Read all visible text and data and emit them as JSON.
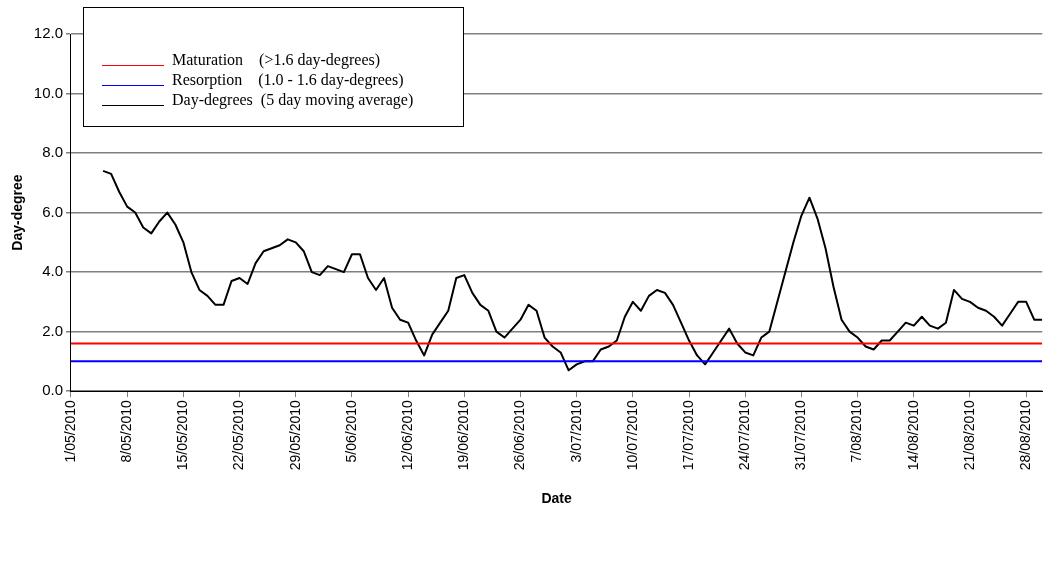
{
  "chart_data": {
    "type": "line",
    "xlabel": "Date",
    "ylabel": "Day-degree",
    "xlim": [
      "2010-05-01",
      "2010-08-30"
    ],
    "xticks": [
      {
        "value": "2010-05-01",
        "label": "1/05/2010"
      },
      {
        "value": "2010-05-08",
        "label": "8/05/2010"
      },
      {
        "value": "2010-05-15",
        "label": "15/05/2010"
      },
      {
        "value": "2010-05-22",
        "label": "22/05/2010"
      },
      {
        "value": "2010-05-29",
        "label": "29/05/2010"
      },
      {
        "value": "2010-06-05",
        "label": "5/06/2010"
      },
      {
        "value": "2010-06-12",
        "label": "12/06/2010"
      },
      {
        "value": "2010-06-19",
        "label": "19/06/2010"
      },
      {
        "value": "2010-06-26",
        "label": "26/06/2010"
      },
      {
        "value": "2010-07-03",
        "label": "3/07/2010"
      },
      {
        "value": "2010-07-10",
        "label": "10/07/2010"
      },
      {
        "value": "2010-07-17",
        "label": "17/07/2010"
      },
      {
        "value": "2010-07-24",
        "label": "24/07/2010"
      },
      {
        "value": "2010-07-31",
        "label": "31/07/2010"
      },
      {
        "value": "2010-08-07",
        "label": "7/08/2010"
      },
      {
        "value": "2010-08-14",
        "label": "14/08/2010"
      },
      {
        "value": "2010-08-21",
        "label": "21/08/2010"
      },
      {
        "value": "2010-08-28",
        "label": "28/08/2010"
      }
    ],
    "ylim": [
      0,
      12
    ],
    "yticks": [
      {
        "value": 0,
        "label": "0.0"
      },
      {
        "value": 2,
        "label": "2.0"
      },
      {
        "value": 4,
        "label": "4.0"
      },
      {
        "value": 6,
        "label": "6.0"
      },
      {
        "value": 8,
        "label": "8.0"
      },
      {
        "value": 10,
        "label": "10.0"
      },
      {
        "value": 12,
        "label": "12.0"
      }
    ],
    "grid": "y",
    "legend": "top left",
    "marker": "none",
    "line_style": "solid",
    "series": [
      {
        "name": "Maturation    (>1.6 day-degrees)",
        "color": "#ff0000",
        "x": [
          "2010-05-01",
          "2010-08-30"
        ],
        "values": [
          1.6,
          1.6
        ]
      },
      {
        "name": "Resorption    (1.0 - 1.6 day-degrees)",
        "color": "#0000ff",
        "x": [
          "2010-05-01",
          "2010-08-30"
        ],
        "values": [
          1.0,
          1.0
        ]
      },
      {
        "name": "Day-degrees  (5 day moving average)",
        "color": "#000000",
        "x": [
          "2010-05-05",
          "2010-05-06",
          "2010-05-07",
          "2010-05-08",
          "2010-05-09",
          "2010-05-10",
          "2010-05-11",
          "2010-05-12",
          "2010-05-13",
          "2010-05-14",
          "2010-05-15",
          "2010-05-16",
          "2010-05-17",
          "2010-05-18",
          "2010-05-19",
          "2010-05-20",
          "2010-05-21",
          "2010-05-22",
          "2010-05-23",
          "2010-05-24",
          "2010-05-25",
          "2010-05-26",
          "2010-05-27",
          "2010-05-28",
          "2010-05-29",
          "2010-05-30",
          "2010-05-31",
          "2010-06-01",
          "2010-06-02",
          "2010-06-03",
          "2010-06-04",
          "2010-06-05",
          "2010-06-06",
          "2010-06-07",
          "2010-06-08",
          "2010-06-09",
          "2010-06-10",
          "2010-06-11",
          "2010-06-12",
          "2010-06-13",
          "2010-06-14",
          "2010-06-15",
          "2010-06-16",
          "2010-06-17",
          "2010-06-18",
          "2010-06-19",
          "2010-06-20",
          "2010-06-21",
          "2010-06-22",
          "2010-06-23",
          "2010-06-24",
          "2010-06-25",
          "2010-06-26",
          "2010-06-27",
          "2010-06-28",
          "2010-06-29",
          "2010-06-30",
          "2010-07-01",
          "2010-07-02",
          "2010-07-03",
          "2010-07-04",
          "2010-07-05",
          "2010-07-06",
          "2010-07-07",
          "2010-07-08",
          "2010-07-09",
          "2010-07-10",
          "2010-07-11",
          "2010-07-12",
          "2010-07-13",
          "2010-07-14",
          "2010-07-15",
          "2010-07-16",
          "2010-07-17",
          "2010-07-18",
          "2010-07-19",
          "2010-07-20",
          "2010-07-21",
          "2010-07-22",
          "2010-07-23",
          "2010-07-24",
          "2010-07-25",
          "2010-07-26",
          "2010-07-27",
          "2010-07-28",
          "2010-07-29",
          "2010-07-30",
          "2010-07-31",
          "2010-08-01",
          "2010-08-02",
          "2010-08-03",
          "2010-08-04",
          "2010-08-05",
          "2010-08-06",
          "2010-08-07",
          "2010-08-08",
          "2010-08-09",
          "2010-08-10",
          "2010-08-11",
          "2010-08-12",
          "2010-08-13",
          "2010-08-14",
          "2010-08-15",
          "2010-08-16",
          "2010-08-17",
          "2010-08-18",
          "2010-08-19",
          "2010-08-20",
          "2010-08-21",
          "2010-08-22",
          "2010-08-23",
          "2010-08-24",
          "2010-08-25",
          "2010-08-26",
          "2010-08-27",
          "2010-08-28",
          "2010-08-29",
          "2010-08-30"
        ],
        "values": [
          7.4,
          7.3,
          6.7,
          6.2,
          6.0,
          5.5,
          5.3,
          5.7,
          6.0,
          5.6,
          5.0,
          4.0,
          3.4,
          3.2,
          2.9,
          2.9,
          3.7,
          3.8,
          3.6,
          4.3,
          4.7,
          4.8,
          4.9,
          5.1,
          5.0,
          4.7,
          4.0,
          3.9,
          4.2,
          4.1,
          4.0,
          4.6,
          4.6,
          3.8,
          3.4,
          3.8,
          2.8,
          2.4,
          2.3,
          1.7,
          1.2,
          1.9,
          2.3,
          2.7,
          3.8,
          3.9,
          3.3,
          2.9,
          2.7,
          2.0,
          1.8,
          2.1,
          2.4,
          2.9,
          2.7,
          1.8,
          1.5,
          1.3,
          0.7,
          0.9,
          1.0,
          1.0,
          1.4,
          1.5,
          1.7,
          2.5,
          3.0,
          2.7,
          3.2,
          3.4,
          3.3,
          2.9,
          2.3,
          1.7,
          1.2,
          0.9,
          1.3,
          1.7,
          2.1,
          1.6,
          1.3,
          1.2,
          1.8,
          2.0,
          3.0,
          4.0,
          5.0,
          5.9,
          6.5,
          5.8,
          4.8,
          3.5,
          2.4,
          2.0,
          1.8,
          1.5,
          1.4,
          1.7,
          1.7,
          2.0,
          2.3,
          2.2,
          2.5,
          2.2,
          2.1,
          2.3,
          3.4,
          3.1,
          3.0,
          2.8,
          2.7,
          2.5,
          2.2,
          2.6,
          3.0,
          3.0,
          2.4,
          2.4
        ]
      }
    ]
  }
}
